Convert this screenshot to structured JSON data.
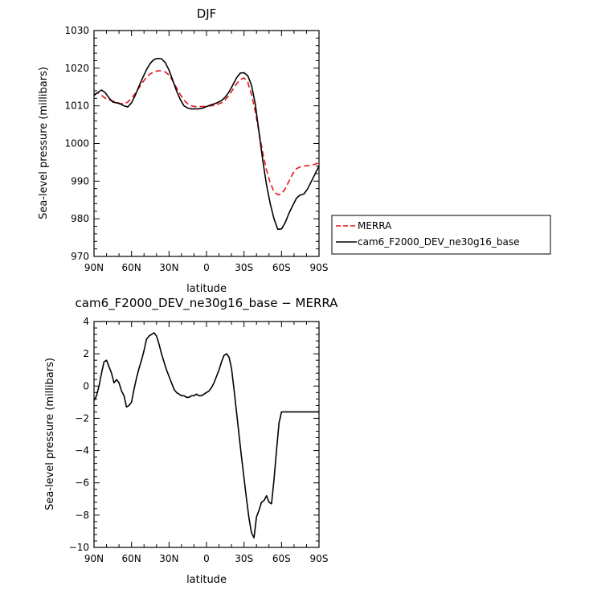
{
  "colors": {
    "merra": "#e8121a",
    "model": "#000000",
    "frame": "#000000"
  },
  "chart_data": [
    {
      "type": "line",
      "title": "DJF",
      "xlabel": "latitude",
      "ylabel": "Sea-level pressure (millibars)",
      "xlim": [
        -90,
        90
      ],
      "ylim": [
        970,
        1030
      ],
      "x_ticks": [
        -90,
        -60,
        -30,
        0,
        30,
        60,
        90
      ],
      "x_tick_labels": [
        "90N",
        "60N",
        "30N",
        "0",
        "30S",
        "60S",
        "90S"
      ],
      "y_ticks": [
        970,
        980,
        990,
        1000,
        1010,
        1020,
        1030
      ],
      "y_tick_labels": [
        "970",
        "980",
        "990",
        "1000",
        "1010",
        "1020",
        "1030"
      ],
      "legend_position": "right",
      "series": [
        {
          "name": "MERRA",
          "color": "#e8121a",
          "style": "dashed",
          "x": [
            -90,
            -87,
            -84,
            -81,
            -78,
            -75,
            -72,
            -69,
            -66,
            -63,
            -60,
            -57,
            -54,
            -51,
            -48,
            -45,
            -42,
            -39,
            -36,
            -33,
            -30,
            -27,
            -24,
            -21,
            -18,
            -15,
            -12,
            -9,
            -6,
            -3,
            0,
            3,
            6,
            9,
            12,
            15,
            18,
            21,
            24,
            27,
            30,
            33,
            36,
            39,
            42,
            45,
            48,
            51,
            54,
            57,
            60,
            63,
            66,
            69,
            72,
            75,
            78,
            81,
            84,
            87,
            90
          ],
          "y": [
            1013,
            1013.5,
            1012.8,
            1012,
            1011.6,
            1011.3,
            1011,
            1010.6,
            1010.5,
            1011,
            1012,
            1013.3,
            1014.8,
            1016.3,
            1017.6,
            1018.5,
            1019,
            1019.3,
            1019.3,
            1019,
            1018.2,
            1016.6,
            1014.8,
            1013,
            1011.5,
            1010.5,
            1010,
            1009.8,
            1009.8,
            1009.8,
            1009.9,
            1010,
            1010.1,
            1010.4,
            1010.8,
            1011.6,
            1012.8,
            1014.3,
            1015.8,
            1017,
            1017.4,
            1016.3,
            1013,
            1008.5,
            1003,
            997.5,
            993,
            989.5,
            987.2,
            986.4,
            986.6,
            988,
            990,
            992,
            993.3,
            993.8,
            994,
            994.1,
            994.2,
            994.5,
            995
          ]
        },
        {
          "name": "cam6_F2000_DEV_ne30g16_base",
          "color": "#000000",
          "style": "solid",
          "x": [
            -90,
            -87,
            -84,
            -81,
            -78,
            -75,
            -72,
            -69,
            -66,
            -63,
            -60,
            -57,
            -54,
            -51,
            -48,
            -45,
            -42,
            -39,
            -36,
            -33,
            -30,
            -27,
            -24,
            -21,
            -18,
            -15,
            -12,
            -9,
            -6,
            -3,
            0,
            3,
            6,
            9,
            12,
            15,
            18,
            21,
            24,
            27,
            30,
            33,
            36,
            39,
            42,
            45,
            48,
            51,
            54,
            57,
            60,
            63,
            66,
            69,
            72,
            75,
            78,
            81,
            84,
            87,
            90
          ],
          "y": [
            1012.8,
            1013.5,
            1014.2,
            1013.5,
            1012.1,
            1011,
            1010.8,
            1010.5,
            1010,
            1009.7,
            1010.8,
            1012.8,
            1015.2,
            1017.5,
            1019.6,
            1021.3,
            1022.3,
            1022.6,
            1022.5,
            1021.5,
            1019.5,
            1016.8,
            1014,
            1011.7,
            1010,
            1009.4,
            1009.2,
            1009.2,
            1009.2,
            1009.4,
            1009.8,
            1010.2,
            1010.5,
            1010.9,
            1011.4,
            1012.3,
            1013.7,
            1015.5,
            1017.4,
            1018.7,
            1018.8,
            1018,
            1015.5,
            1010.5,
            1003,
            995.5,
            989,
            984,
            980,
            977.2,
            977.3,
            979,
            981.5,
            983.5,
            985.5,
            986.3,
            986.6,
            988,
            990,
            992,
            994
          ]
        }
      ]
    },
    {
      "type": "line",
      "title": "cam6_F2000_DEV_ne30g16_base − MERRA",
      "xlabel": "latitude",
      "ylabel": "Sea-level pressure (millibars)",
      "xlim": [
        -90,
        90
      ],
      "ylim": [
        -10,
        4
      ],
      "x_ticks": [
        -90,
        -60,
        -30,
        0,
        30,
        60,
        90
      ],
      "x_tick_labels": [
        "90N",
        "60N",
        "30N",
        "0",
        "30S",
        "60S",
        "90S"
      ],
      "y_ticks": [
        -10,
        -8,
        -6,
        -4,
        -2,
        0,
        2,
        4
      ],
      "y_tick_labels": [
        "−10",
        "−8",
        "−6",
        "−4",
        "−2",
        "0",
        "2",
        "4"
      ],
      "series": [
        {
          "color": "#000000",
          "style": "solid",
          "x": [
            -90,
            -88,
            -86,
            -84,
            -82,
            -80,
            -78,
            -76,
            -74,
            -72,
            -70,
            -68,
            -66,
            -64,
            -62,
            -60,
            -58,
            -56,
            -54,
            -52,
            -50,
            -48,
            -46,
            -44,
            -42,
            -40,
            -38,
            -36,
            -34,
            -32,
            -30,
            -28,
            -26,
            -24,
            -22,
            -20,
            -18,
            -16,
            -14,
            -12,
            -10,
            -8,
            -6,
            -4,
            -2,
            0,
            2,
            4,
            6,
            8,
            10,
            12,
            14,
            16,
            18,
            20,
            22,
            24,
            26,
            28,
            30,
            32,
            34,
            36,
            38,
            40,
            42,
            44,
            46,
            48,
            50,
            52,
            54,
            56,
            58,
            60,
            62,
            64,
            66,
            68,
            70,
            72,
            74,
            76,
            78,
            80,
            82,
            84,
            86,
            88,
            90
          ],
          "y": [
            -0.9,
            -0.6,
            0,
            0.8,
            1.5,
            1.6,
            1.2,
            0.8,
            0.2,
            0.4,
            0.2,
            -0.3,
            -0.6,
            -1.3,
            -1.2,
            -1,
            -0.2,
            0.5,
            1.1,
            1.6,
            2.2,
            2.9,
            3.1,
            3.2,
            3.3,
            3.1,
            2.6,
            2,
            1.5,
            1,
            0.6,
            0.2,
            -0.2,
            -0.4,
            -0.5,
            -0.6,
            -0.6,
            -0.7,
            -0.7,
            -0.6,
            -0.6,
            -0.5,
            -0.6,
            -0.6,
            -0.5,
            -0.4,
            -0.3,
            -0.1,
            0.2,
            0.6,
            1,
            1.5,
            1.9,
            2,
            1.8,
            1.1,
            -0.2,
            -1.6,
            -3,
            -4.4,
            -5.7,
            -7,
            -8.2,
            -9.1,
            -9.4,
            -8.1,
            -7.7,
            -7.2,
            -7.1,
            -6.8,
            -7.2,
            -7.3,
            -5.8,
            -4,
            -2.3,
            -1.6,
            -1.6,
            -1.6,
            -1.6,
            -1.6,
            -1.6,
            -1.6,
            -1.6,
            -1.6,
            -1.6,
            -1.6,
            -1.6,
            -1.6,
            -1.6,
            -1.6,
            -1.6
          ]
        }
      ]
    }
  ]
}
